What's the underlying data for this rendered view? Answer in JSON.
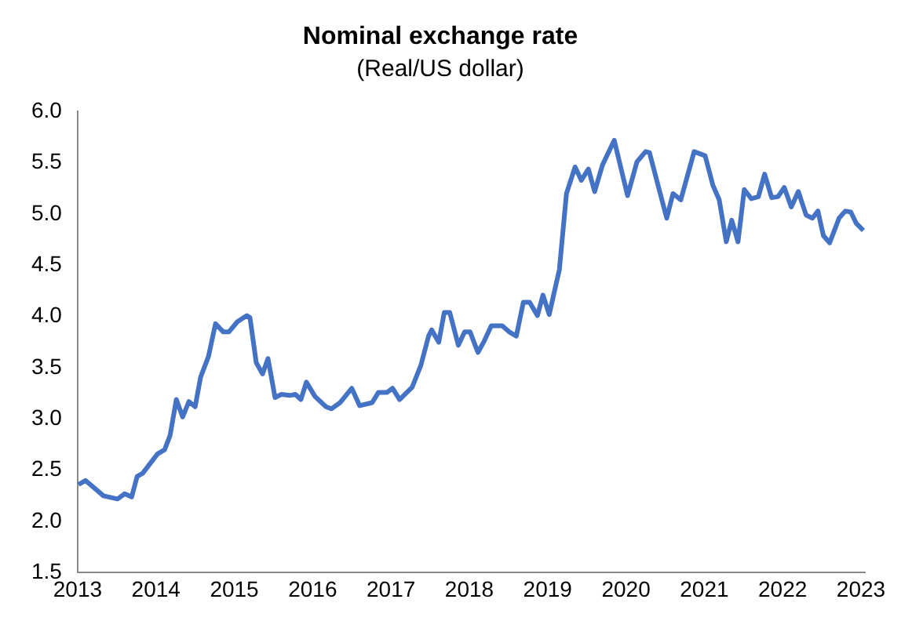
{
  "chart_data": {
    "type": "line",
    "title": "Nominal exchange rate",
    "subtitle": "(Real/US dollar)",
    "x": [
      2013.01,
      2013.1,
      2013.33,
      2013.51,
      2013.6,
      2013.69,
      2013.76,
      2013.83,
      2014.02,
      2014.11,
      2014.18,
      2014.26,
      2014.34,
      2014.42,
      2014.5,
      2014.57,
      2014.67,
      2014.76,
      2014.86,
      2014.93,
      2015.04,
      2015.16,
      2015.2,
      2015.28,
      2015.36,
      2015.43,
      2015.52,
      2015.6,
      2015.71,
      2015.78,
      2015.85,
      2015.92,
      2016.03,
      2016.17,
      2016.24,
      2016.35,
      2016.5,
      2016.6,
      2016.76,
      2016.84,
      2016.95,
      2017.02,
      2017.11,
      2017.27,
      2017.38,
      2017.48,
      2017.52,
      2017.61,
      2017.68,
      2017.75,
      2017.86,
      2017.94,
      2018.01,
      2018.11,
      2018.19,
      2018.28,
      2018.42,
      2018.51,
      2018.6,
      2018.69,
      2018.77,
      2018.87,
      2018.94,
      2019.02,
      2019.15,
      2019.24,
      2019.35,
      2019.43,
      2019.52,
      2019.6,
      2019.7,
      2019.85,
      2019.97,
      2020.02,
      2020.14,
      2020.25,
      2020.3,
      2020.52,
      2020.6,
      2020.7,
      2020.87,
      2021.01,
      2021.11,
      2021.19,
      2021.28,
      2021.35,
      2021.43,
      2021.51,
      2021.6,
      2021.69,
      2021.77,
      2021.86,
      2021.94,
      2022.02,
      2022.11,
      2022.2,
      2022.3,
      2022.38,
      2022.45,
      2022.52,
      2022.6,
      2022.72,
      2022.8,
      2022.87,
      2022.94,
      2023.03
    ],
    "series": [
      {
        "color": "#4472c4",
        "values": [
          2.36,
          2.4,
          2.25,
          2.22,
          2.27,
          2.24,
          2.44,
          2.47,
          2.66,
          2.7,
          2.84,
          3.19,
          3.02,
          3.17,
          3.12,
          3.41,
          3.61,
          3.93,
          3.85,
          3.85,
          3.95,
          4.01,
          3.99,
          3.55,
          3.44,
          3.59,
          3.21,
          3.24,
          3.23,
          3.24,
          3.19,
          3.36,
          3.22,
          3.12,
          3.1,
          3.16,
          3.3,
          3.13,
          3.16,
          3.26,
          3.26,
          3.3,
          3.19,
          3.31,
          3.52,
          3.81,
          3.87,
          3.75,
          4.04,
          4.04,
          3.72,
          3.85,
          3.85,
          3.65,
          3.76,
          3.91,
          3.91,
          3.85,
          3.81,
          4.14,
          4.14,
          4.01,
          4.21,
          4.02,
          4.46,
          5.2,
          5.46,
          5.33,
          5.44,
          5.22,
          5.48,
          5.72,
          5.34,
          5.18,
          5.51,
          5.61,
          5.6,
          4.96,
          5.2,
          5.14,
          5.61,
          5.57,
          5.28,
          5.14,
          4.73,
          4.94,
          4.73,
          5.24,
          5.15,
          5.17,
          5.39,
          5.16,
          5.17,
          5.26,
          5.07,
          5.22,
          4.99,
          4.96,
          5.03,
          4.79,
          4.72,
          4.96,
          5.03,
          5.02,
          4.91,
          4.84
        ]
      }
    ],
    "xlim": [
      2013,
      2023.05
    ],
    "xticks": [
      2013,
      2014,
      2015,
      2016,
      2017,
      2018,
      2019,
      2020,
      2021,
      2022,
      2023
    ],
    "ylim": [
      1.5,
      6
    ],
    "yticks": [
      1.5,
      {
        "value": 2,
        "label": "2.0"
      },
      2.5,
      {
        "value": 3,
        "label": "3.0"
      },
      3.5,
      {
        "value": 4,
        "label": "4.0"
      },
      4.5,
      {
        "value": 5,
        "label": "5.0"
      },
      5.5,
      {
        "value": 6,
        "label": "6.0"
      }
    ],
    "grid": false,
    "legend": false,
    "marker": "none",
    "line_style": "solid"
  }
}
